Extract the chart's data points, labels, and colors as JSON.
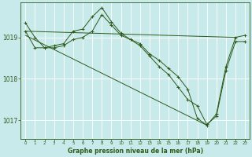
{
  "background_color": "#c8eaea",
  "line_color": "#2d5a1b",
  "ylim": [
    1016.55,
    1019.85
  ],
  "yticks": [
    1017.0,
    1018.0,
    1019.0
  ],
  "xlim": [
    -0.5,
    23.5
  ],
  "x_ticks": [
    0,
    1,
    2,
    3,
    4,
    5,
    6,
    7,
    8,
    9,
    10,
    11,
    12,
    13,
    14,
    15,
    16,
    17,
    18,
    19,
    20,
    21,
    22,
    23
  ],
  "xlabel": "Graphe pression niveau de la mer (hPa)",
  "series": [
    {
      "x": [
        0,
        1,
        2,
        3,
        4,
        5,
        6,
        7,
        8,
        9,
        10,
        11,
        12,
        13,
        14,
        15,
        16,
        17,
        18,
        19,
        20,
        21,
        22,
        23
      ],
      "y": [
        1019.35,
        1019.0,
        1018.75,
        1018.8,
        1018.85,
        1019.15,
        1019.2,
        1019.5,
        1019.72,
        1019.38,
        1019.1,
        1018.95,
        1018.85,
        1018.6,
        1018.45,
        1018.25,
        1018.05,
        1017.75,
        1017.05,
        1016.88,
        1017.15,
        1018.3,
        1019.0,
        1019.05
      ]
    },
    {
      "x": [
        0,
        1,
        2,
        3,
        4,
        5,
        6,
        7,
        8,
        9,
        10,
        11,
        12,
        13,
        14,
        15,
        16,
        17,
        18,
        19,
        20,
        21,
        22,
        23
      ],
      "y": [
        1019.15,
        1018.75,
        1018.75,
        1018.75,
        1018.8,
        1018.95,
        1019.0,
        1019.15,
        1019.55,
        1019.3,
        1019.05,
        1018.95,
        1018.8,
        1018.55,
        1018.3,
        1018.1,
        1017.8,
        1017.5,
        1017.35,
        1016.9,
        1017.1,
        1018.2,
        1018.9,
        1018.9
      ]
    },
    {
      "x": [
        0,
        10,
        22
      ],
      "y": [
        1019.15,
        1019.05,
        1019.0
      ]
    }
  ],
  "trend_flat": {
    "x": [
      0,
      22
    ],
    "y": [
      1019.15,
      1019.0
    ]
  },
  "trend_down": {
    "x": [
      0,
      19
    ],
    "y": [
      1019.05,
      1016.88
    ]
  }
}
